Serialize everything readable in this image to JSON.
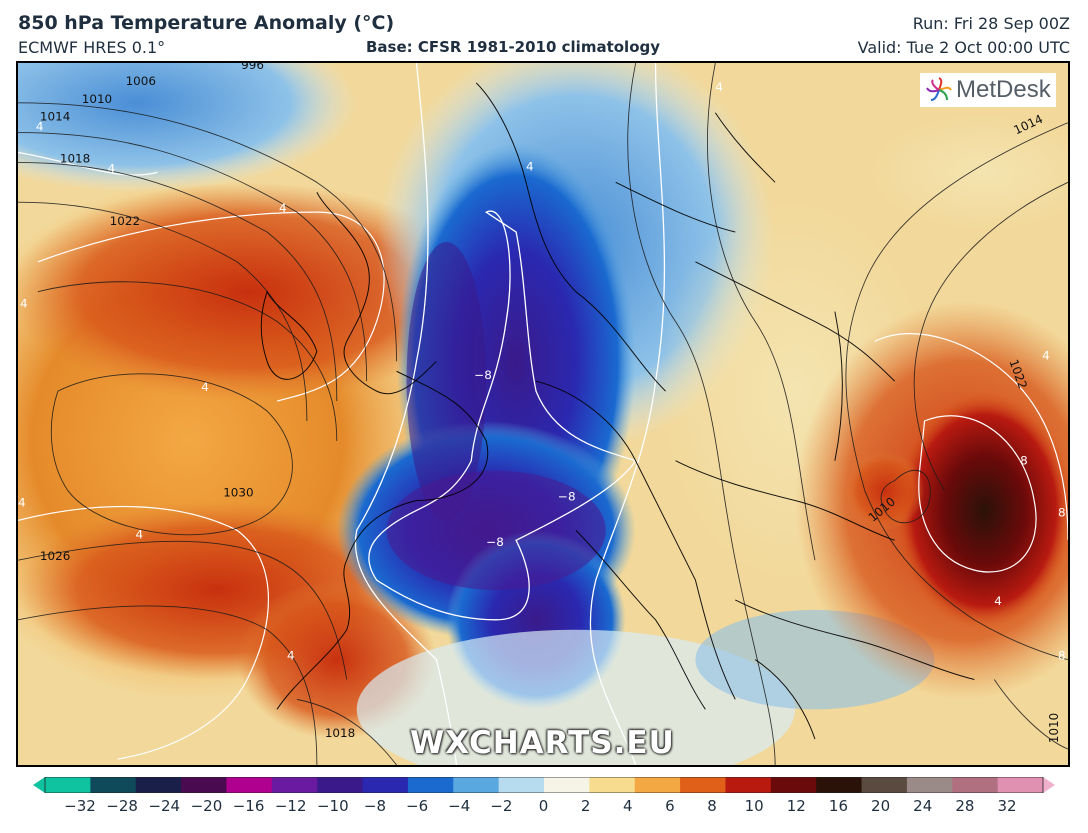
{
  "header": {
    "title": "850 hPa Temperature Anomaly (°C)",
    "model": "ECMWF HRES 0.1°",
    "base": "Base: CFSR 1981-2010 climatology",
    "run": "Run: Fri 28 Sep 00Z",
    "valid": "Valid: Tue 2 Oct 00:00 UTC"
  },
  "logo": {
    "text": "MetDesk",
    "icon": "metdesk-flower-icon"
  },
  "watermark": "WXCHARTS.EU",
  "colorbar": {
    "ticks": [
      "−32",
      "−28",
      "−24",
      "−20",
      "−16",
      "−12",
      "−10",
      "−8",
      "−6",
      "−4",
      "−2",
      "0",
      "2",
      "4",
      "6",
      "8",
      "10",
      "12",
      "16",
      "20",
      "24",
      "28",
      "32"
    ],
    "colors": [
      "#0fc2a0",
      "#0f4a5a",
      "#1a1f4a",
      "#4a0a50",
      "#b00090",
      "#6a1aa0",
      "#3a1a8a",
      "#2a28b0",
      "#1a6ad0",
      "#5aa8e0",
      "#b8dcef",
      "#f6f4e6",
      "#f7dc90",
      "#f3a844",
      "#e0601a",
      "#b81a10",
      "#6a0a0a",
      "#2a1208",
      "#5a4a40",
      "#9a8a88",
      "#b07080",
      "#e090b0"
    ]
  },
  "map": {
    "isobar_labels": [
      "1006",
      "1010",
      "1014",
      "1018",
      "1022",
      "1030",
      "1026",
      "1018",
      "1010",
      "1014",
      "1022",
      "1010",
      "996"
    ],
    "anomaly_labels": [
      "4",
      "4",
      "4",
      "4",
      "4",
      "4",
      "4",
      "4",
      "4",
      "−8",
      "−8",
      "−8",
      "8",
      "8",
      "8",
      "4",
      "4",
      "4"
    ]
  }
}
